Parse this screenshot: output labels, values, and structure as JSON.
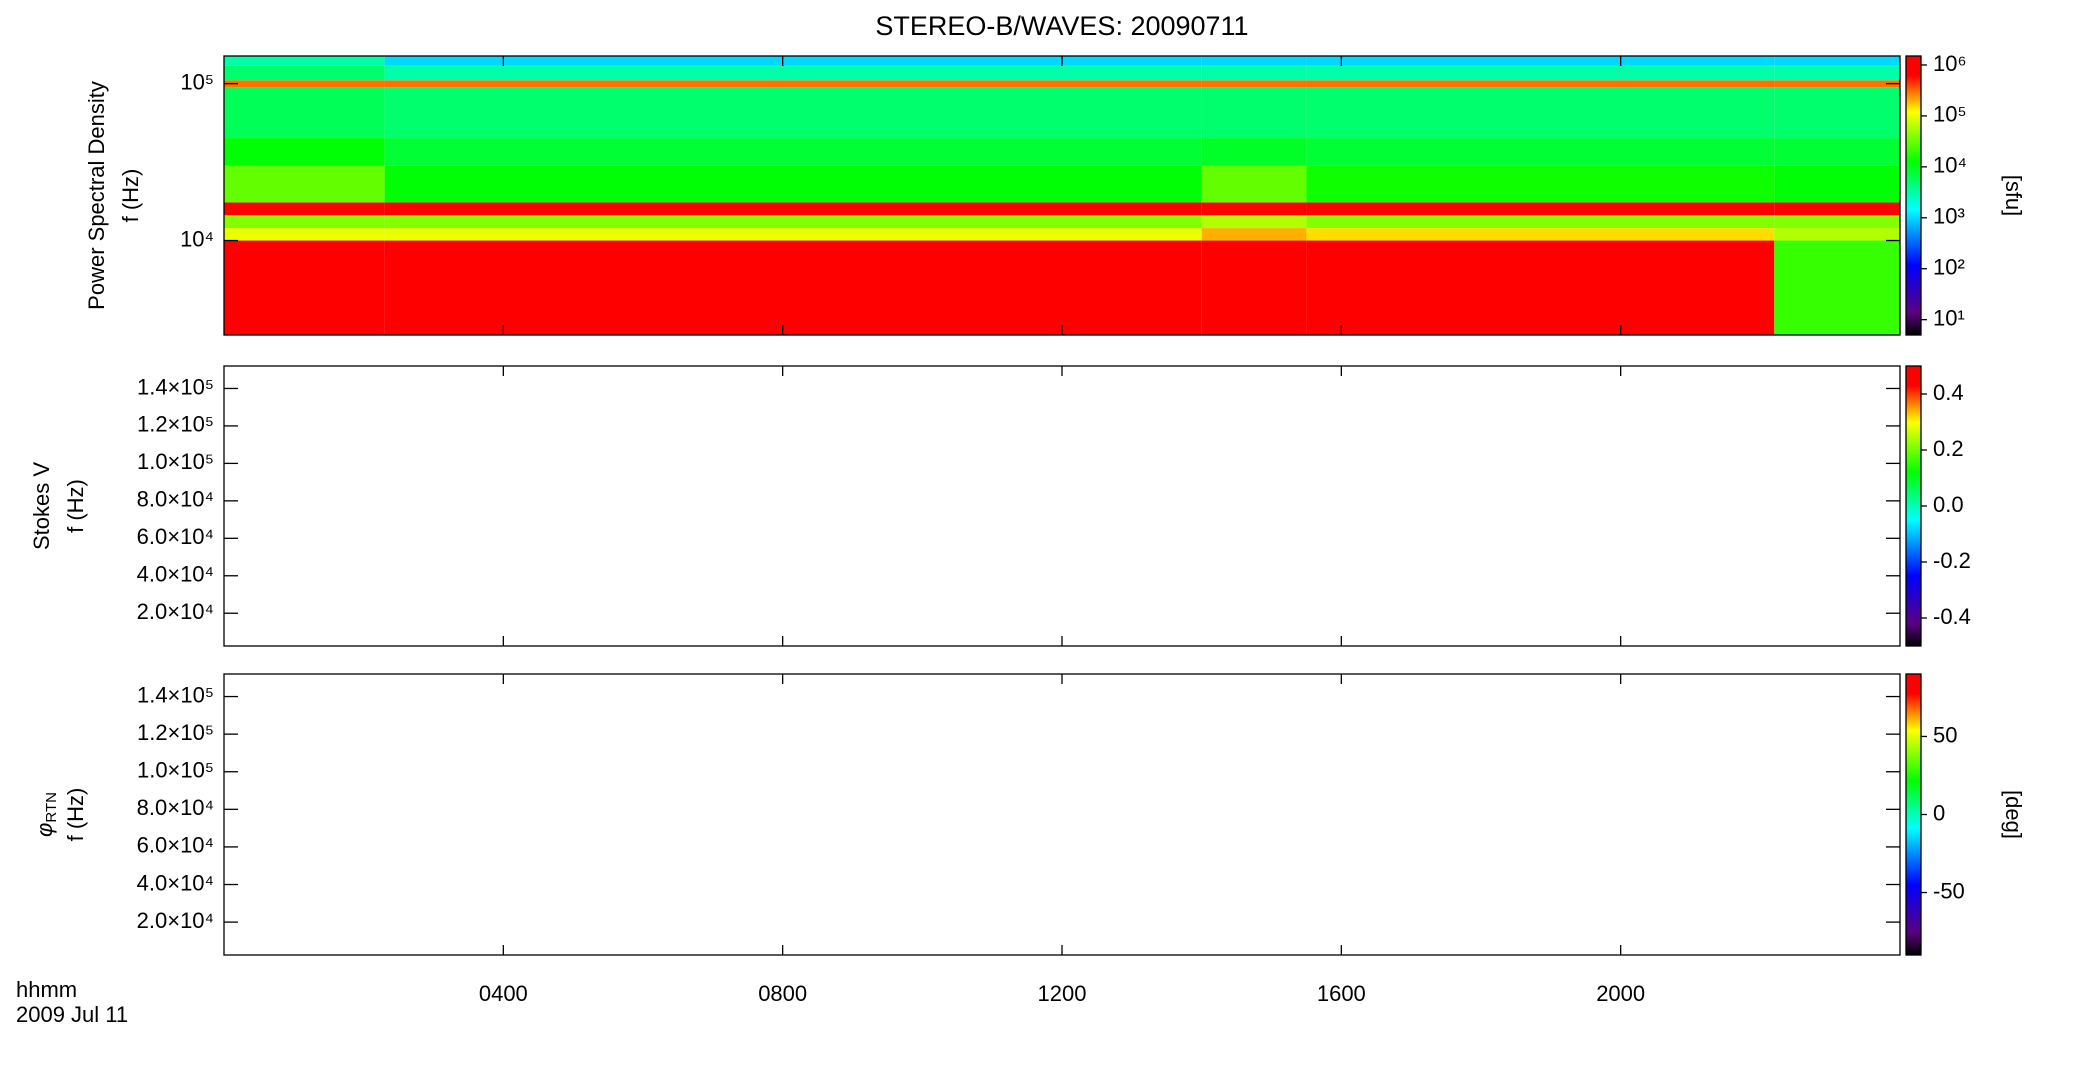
{
  "title": "STEREO-B/WAVES: 20090711",
  "x_axis": {
    "label_lines": [
      "hhmm",
      "2009 Jul 11"
    ]
  },
  "chart_data": [
    {
      "type": "spectrogram",
      "ylabel_lines": [
        "Power Spectral Density",
        "f (Hz)"
      ],
      "log_y": true,
      "ylim": [
        2500,
        150000
      ],
      "yticks": [
        {
          "value": 10000,
          "label": "10⁴"
        },
        {
          "value": 100000,
          "label": "10⁵"
        }
      ],
      "xlim": [
        0,
        24
      ],
      "x_edges": [
        0,
        2.3,
        14,
        15.5,
        22.2,
        24
      ],
      "f_edges": [
        2500,
        10000,
        12000,
        14500,
        17500,
        30000,
        45000,
        95000,
        105000,
        130000,
        150000
      ],
      "z": [
        [
          1000000,
          100000,
          40000,
          1000000,
          30000,
          12000,
          6000,
          300000,
          5000,
          3000
        ],
        [
          1000000,
          100000,
          40000,
          1000000,
          12000,
          8000,
          5000,
          300000,
          3000,
          1000
        ],
        [
          1000000,
          200000,
          60000,
          1000000,
          30000,
          9000,
          5000,
          300000,
          3000,
          1000
        ],
        [
          1000000,
          150000,
          40000,
          1000000,
          14000,
          8000,
          5000,
          300000,
          3000,
          1000
        ],
        [
          20000,
          60000,
          40000,
          1000000,
          12000,
          8000,
          5000,
          300000,
          3000,
          1000
        ]
      ],
      "colorbar": {
        "log": true,
        "zlim": [
          5,
          1500000
        ],
        "zticks": [
          {
            "value": 10,
            "label": "10¹"
          },
          {
            "value": 100,
            "label": "10²"
          },
          {
            "value": 1000,
            "label": "10³"
          },
          {
            "value": 10000,
            "label": "10⁴"
          },
          {
            "value": 100000,
            "label": "10⁵"
          },
          {
            "value": 1000000,
            "label": "10⁶"
          }
        ],
        "label": "[sfu]"
      }
    },
    {
      "type": "spectrogram",
      "ylabel_lines": [
        "Stokes V",
        "f (Hz)"
      ],
      "log_y": false,
      "ylim": [
        2500,
        152000
      ],
      "yticks": [
        {
          "value": 20000,
          "label": "2.0×10⁴"
        },
        {
          "value": 40000,
          "label": "4.0×10⁴"
        },
        {
          "value": 60000,
          "label": "6.0×10⁴"
        },
        {
          "value": 80000,
          "label": "8.0×10⁴"
        },
        {
          "value": 100000,
          "label": "1.0×10⁵"
        },
        {
          "value": 120000,
          "label": "1.2×10⁵"
        },
        {
          "value": 140000,
          "label": "1.4×10⁵"
        }
      ],
      "xlim": [
        0,
        24
      ],
      "colorbar": {
        "log": false,
        "zlim": [
          -0.5,
          0.5
        ],
        "zticks": [
          -0.4,
          -0.2,
          {
            "value": 0,
            "label": "0.0"
          },
          0.2,
          0.4
        ]
      }
    },
    {
      "type": "spectrogram",
      "ylabel_symbol": "φ",
      "ylabel_subscript": "RTN",
      "ylabel_lines": [
        "f (Hz)"
      ],
      "log_y": false,
      "ylim": [
        2500,
        152000
      ],
      "yticks": [
        {
          "value": 20000,
          "label": "2.0×10⁴"
        },
        {
          "value": 40000,
          "label": "4.0×10⁴"
        },
        {
          "value": 60000,
          "label": "6.0×10⁴"
        },
        {
          "value": 80000,
          "label": "8.0×10⁴"
        },
        {
          "value": 100000,
          "label": "1.0×10⁵"
        },
        {
          "value": 120000,
          "label": "1.2×10⁵"
        },
        {
          "value": 140000,
          "label": "1.4×10⁵"
        }
      ],
      "xlim": [
        0,
        24
      ],
      "xticks": [
        {
          "value": 4,
          "label": "0400"
        },
        {
          "value": 8,
          "label": "0800"
        },
        {
          "value": 12,
          "label": "1200"
        },
        {
          "value": 16,
          "label": "1600"
        },
        {
          "value": 20,
          "label": "2000"
        }
      ],
      "colorbar": {
        "log": false,
        "zlim": [
          -90,
          90
        ],
        "zticks": [
          -50,
          0,
          50
        ],
        "label": "[deg]"
      }
    }
  ]
}
